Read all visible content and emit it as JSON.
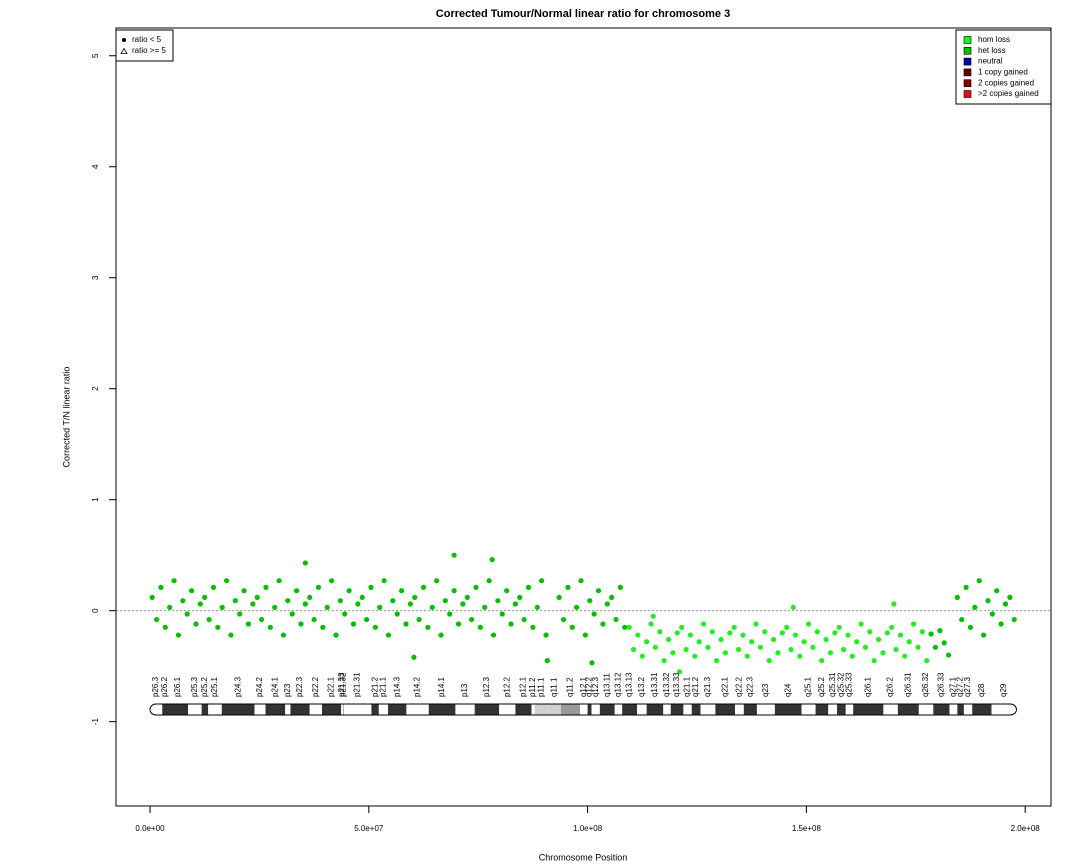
{
  "chart_data": {
    "type": "scatter",
    "title": "Corrected Tumour/Normal linear ratio for chromosome  3",
    "x_label": "Chromosome Position",
    "y_label": "Corrected T/N linear ratio",
    "xlim": [
      -7770000,
      205900000
    ],
    "ylim": [
      -1.76,
      5.25
    ],
    "xticks": [
      {
        "value": 0,
        "label": "0.0e+00"
      },
      {
        "value": 50000000,
        "label": "5.0e+07"
      },
      {
        "value": 100000000,
        "label": "1.0e+08"
      },
      {
        "value": 150000000,
        "label": "1.5e+08"
      },
      {
        "value": 200000000,
        "label": "2.0e+08"
      }
    ],
    "yticks": [
      -1,
      0,
      1,
      2,
      3,
      4,
      5
    ],
    "reference_line": 0,
    "legend": "top-right",
    "shape_legend": [
      "ratio < 5",
      "ratio >= 5"
    ],
    "series": [
      {
        "name": "hom loss",
        "color": "#22ee22",
        "x": [
          109500000.0,
          110500000.0,
          111500000.0,
          112500000.0,
          113500000.0,
          114500000.0,
          115500000.0,
          116500000.0,
          117500000.0,
          118500000.0,
          119500000.0,
          120500000.0,
          121500000.0,
          122500000.0,
          123500000.0,
          124500000.0,
          125500000.0,
          126500000.0,
          127500000.0,
          128500000.0,
          129500000.0,
          130500000.0,
          131500000.0,
          132500000.0,
          133500000.0,
          134500000.0,
          135500000.0,
          136500000.0,
          137500000.0,
          138500000.0,
          139500000.0,
          140500000.0,
          141500000.0,
          142500000.0,
          143500000.0,
          144500000.0,
          145500000.0,
          146500000.0,
          147500000.0,
          148500000.0,
          149500000.0,
          150500000.0,
          151500000.0,
          152500000.0,
          153500000.0,
          154500000.0,
          155500000.0,
          156500000.0,
          157500000.0,
          158500000.0,
          159500000.0,
          160500000.0,
          161500000.0,
          162500000.0,
          163500000.0,
          164500000.0,
          165500000.0,
          166500000.0,
          167500000.0,
          168500000.0,
          169500000.0,
          170500000.0,
          171500000.0,
          172500000.0,
          173500000.0,
          174500000.0,
          175500000.0,
          176500000.0,
          177500000.0,
          121000000.0,
          147000000.0,
          170000000.0,
          115000000.0
        ],
        "values": [
          -0.15,
          -0.35,
          -0.22,
          -0.41,
          -0.28,
          -0.12,
          -0.33,
          -0.19,
          -0.45,
          -0.26,
          -0.38,
          -0.2,
          -0.15,
          -0.35,
          -0.22,
          -0.41,
          -0.28,
          -0.12,
          -0.33,
          -0.19,
          -0.45,
          -0.26,
          -0.38,
          -0.2,
          -0.15,
          -0.35,
          -0.22,
          -0.41,
          -0.28,
          -0.12,
          -0.33,
          -0.19,
          -0.45,
          -0.26,
          -0.38,
          -0.2,
          -0.15,
          -0.35,
          -0.22,
          -0.41,
          -0.28,
          -0.12,
          -0.33,
          -0.19,
          -0.45,
          -0.26,
          -0.38,
          -0.2,
          -0.15,
          -0.35,
          -0.22,
          -0.41,
          -0.28,
          -0.12,
          -0.33,
          -0.19,
          -0.45,
          -0.26,
          -0.38,
          -0.2,
          -0.15,
          -0.35,
          -0.22,
          -0.41,
          -0.28,
          -0.12,
          -0.33,
          -0.19,
          -0.45,
          -0.55,
          0.03,
          0.06,
          -0.05
        ]
      },
      {
        "name": "het loss",
        "color": "#00c000",
        "x": [
          500000.0,
          1500000.0,
          2500000.0,
          3500000.0,
          4500000.0,
          5500000.0,
          6500000.0,
          7500000.0,
          8500000.0,
          9500000.0,
          10500000.0,
          11500000.0,
          12500000.0,
          13500000.0,
          14500000.0,
          15500000.0,
          16500000.0,
          17500000.0,
          18500000.0,
          19500000.0,
          20500000.0,
          21500000.0,
          22500000.0,
          23500000.0,
          24500000.0,
          25500000.0,
          26500000.0,
          27500000.0,
          28500000.0,
          29500000.0,
          30500000.0,
          31500000.0,
          32500000.0,
          33500000.0,
          34500000.0,
          35500000.0,
          36500000.0,
          37500000.0,
          38500000.0,
          39500000.0,
          40500000.0,
          41500000.0,
          42500000.0,
          43500000.0,
          44500000.0,
          45500000.0,
          46500000.0,
          47500000.0,
          48500000.0,
          49500000.0,
          50500000.0,
          51500000.0,
          52500000.0,
          53500000.0,
          54500000.0,
          55500000.0,
          56500000.0,
          57500000.0,
          58500000.0,
          59500000.0,
          60500000.0,
          61500000.0,
          62500000.0,
          63500000.0,
          64500000.0,
          65500000.0,
          66500000.0,
          67500000.0,
          68500000.0,
          69500000.0,
          70500000.0,
          71500000.0,
          72500000.0,
          73500000.0,
          74500000.0,
          75500000.0,
          76500000.0,
          77500000.0,
          78500000.0,
          79500000.0,
          80500000.0,
          81500000.0,
          82500000.0,
          83500000.0,
          84500000.0,
          85500000.0,
          86500000.0,
          87500000.0,
          88500000.0,
          89500000.0,
          90500000.0,
          93500000.0,
          94500000.0,
          95500000.0,
          96500000.0,
          97500000.0,
          98500000.0,
          99500000.0,
          100500000.0,
          101500000.0,
          102500000.0,
          103500000.0,
          104500000.0,
          105500000.0,
          106500000.0,
          107500000.0,
          108500000.0,
          178500000.0,
          179500000.0,
          180500000.0,
          181500000.0,
          182500000.0,
          184500000.0,
          185500000.0,
          186500000.0,
          187500000.0,
          188500000.0,
          189500000.0,
          190500000.0,
          191500000.0,
          192500000.0,
          193500000.0,
          194500000.0,
          195500000.0,
          196500000.0,
          197500000.0,
          69500000.0,
          78200000.0,
          35500000.0,
          60300000.0,
          90800000.0,
          101000000.0
        ],
        "values": [
          0.12,
          -0.08,
          0.21,
          -0.15,
          0.03,
          0.27,
          -0.22,
          0.09,
          -0.03,
          0.18,
          -0.12,
          0.06,
          0.12,
          -0.08,
          0.21,
          -0.15,
          0.03,
          0.27,
          -0.22,
          0.09,
          -0.03,
          0.18,
          -0.12,
          0.06,
          0.12,
          -0.08,
          0.21,
          -0.15,
          0.03,
          0.27,
          -0.22,
          0.09,
          -0.03,
          0.18,
          -0.12,
          0.06,
          0.12,
          -0.08,
          0.21,
          -0.15,
          0.03,
          0.27,
          -0.22,
          0.09,
          -0.03,
          0.18,
          -0.12,
          0.06,
          0.12,
          -0.08,
          0.21,
          -0.15,
          0.03,
          0.27,
          -0.22,
          0.09,
          -0.03,
          0.18,
          -0.12,
          0.06,
          0.12,
          -0.08,
          0.21,
          -0.15,
          0.03,
          0.27,
          -0.22,
          0.09,
          -0.03,
          0.18,
          -0.12,
          0.06,
          0.12,
          -0.08,
          0.21,
          -0.15,
          0.03,
          0.27,
          -0.22,
          0.09,
          -0.03,
          0.18,
          -0.12,
          0.06,
          0.12,
          -0.08,
          0.21,
          -0.15,
          0.03,
          0.27,
          -0.22,
          0.12,
          -0.08,
          0.21,
          -0.15,
          0.03,
          0.27,
          -0.22,
          0.09,
          -0.03,
          0.18,
          -0.12,
          0.06,
          0.12,
          -0.08,
          0.21,
          -0.15,
          -0.21,
          -0.33,
          -0.18,
          -0.29,
          -0.4,
          0.12,
          -0.08,
          0.21,
          -0.15,
          0.03,
          0.27,
          -0.22,
          0.09,
          -0.03,
          0.18,
          -0.12,
          0.06,
          0.12,
          -0.08,
          0.5,
          0.46,
          0.43,
          -0.42,
          -0.45,
          -0.47
        ]
      },
      {
        "name": "neutral",
        "color": "#0000aa",
        "x": [],
        "values": []
      },
      {
        "name": "1 copy gained",
        "color": "#660000",
        "x": [],
        "values": []
      },
      {
        "name": "2 copies gained",
        "color": "#880000",
        "x": [],
        "values": []
      },
      {
        "name": ">2 copies gained",
        "color": "#dd1111",
        "x": [],
        "values": []
      }
    ],
    "stain_colors": {
      "gneg": "#ffffff",
      "gpos": "#333333",
      "acen": "#d0d0d0",
      "gvar": "#999999"
    },
    "cytobands": [
      {
        "name": "p26.3",
        "start": 0,
        "end": 2800000,
        "stain": "gneg"
      },
      {
        "name": "p26.2",
        "start": 2800000,
        "end": 4000000,
        "stain": "gpos"
      },
      {
        "name": "p26.1",
        "start": 4000000,
        "end": 8700000,
        "stain": "gpos"
      },
      {
        "name": "p25.3",
        "start": 8700000,
        "end": 11800000,
        "stain": "gneg"
      },
      {
        "name": "p25.2",
        "start": 11800000,
        "end": 13300000,
        "stain": "gpos"
      },
      {
        "name": "p25.1",
        "start": 13300000,
        "end": 16400000,
        "stain": "gneg"
      },
      {
        "name": "p24.3",
        "start": 16400000,
        "end": 23900000,
        "stain": "gpos"
      },
      {
        "name": "p24.2",
        "start": 23900000,
        "end": 26400000,
        "stain": "gneg"
      },
      {
        "name": "p24.1",
        "start": 26400000,
        "end": 30900000,
        "stain": "gpos"
      },
      {
        "name": "p23",
        "start": 30900000,
        "end": 32100000,
        "stain": "gneg"
      },
      {
        "name": "p22.3",
        "start": 32100000,
        "end": 36500000,
        "stain": "gpos"
      },
      {
        "name": "p22.2",
        "start": 36500000,
        "end": 39300000,
        "stain": "gneg"
      },
      {
        "name": "p22.1",
        "start": 39300000,
        "end": 43700000,
        "stain": "gpos"
      },
      {
        "name": "p21.33",
        "start": 43700000,
        "end": 44100000,
        "stain": "gneg"
      },
      {
        "name": "p21.32",
        "start": 44100000,
        "end": 44200000,
        "stain": "gpos"
      },
      {
        "name": "p21.31",
        "start": 44200000,
        "end": 50600000,
        "stain": "gneg"
      },
      {
        "name": "p21.2",
        "start": 50600000,
        "end": 52300000,
        "stain": "gpos"
      },
      {
        "name": "p21.1",
        "start": 52300000,
        "end": 54400000,
        "stain": "gneg"
      },
      {
        "name": "p14.3",
        "start": 54400000,
        "end": 58600000,
        "stain": "gpos"
      },
      {
        "name": "p14.2",
        "start": 58600000,
        "end": 63700000,
        "stain": "gneg"
      },
      {
        "name": "p14.1",
        "start": 63700000,
        "end": 69800000,
        "stain": "gpos"
      },
      {
        "name": "p13",
        "start": 69800000,
        "end": 74200000,
        "stain": "gneg"
      },
      {
        "name": "p12.3",
        "start": 74200000,
        "end": 79800000,
        "stain": "gpos"
      },
      {
        "name": "p12.2",
        "start": 79800000,
        "end": 83500000,
        "stain": "gneg"
      },
      {
        "name": "p12.1",
        "start": 83500000,
        "end": 87200000,
        "stain": "gpos"
      },
      {
        "name": "p11.2",
        "start": 87200000,
        "end": 87900000,
        "stain": "gneg"
      },
      {
        "name": "p11.1",
        "start": 87900000,
        "end": 91000000,
        "stain": "acen"
      },
      {
        "name": "q11.1",
        "start": 91000000,
        "end": 93900000,
        "stain": "acen"
      },
      {
        "name": "q11.2",
        "start": 93900000,
        "end": 98300000,
        "stain": "gvar"
      },
      {
        "name": "q12.1",
        "start": 98300000,
        "end": 100000000,
        "stain": "gneg"
      },
      {
        "name": "q12.2",
        "start": 100000000,
        "end": 100900000,
        "stain": "gpos"
      },
      {
        "name": "q12.3",
        "start": 100900000,
        "end": 102800000,
        "stain": "gneg"
      },
      {
        "name": "q13.11",
        "start": 102800000,
        "end": 106200000,
        "stain": "gpos"
      },
      {
        "name": "q13.12",
        "start": 106200000,
        "end": 107900000,
        "stain": "gneg"
      },
      {
        "name": "q13.13",
        "start": 107900000,
        "end": 111300000,
        "stain": "gpos"
      },
      {
        "name": "q13.2",
        "start": 111300000,
        "end": 113500000,
        "stain": "gneg"
      },
      {
        "name": "q13.31",
        "start": 113500000,
        "end": 117300000,
        "stain": "gpos"
      },
      {
        "name": "q13.32",
        "start": 117300000,
        "end": 119000000,
        "stain": "gneg"
      },
      {
        "name": "q13.33",
        "start": 119000000,
        "end": 121900000,
        "stain": "gpos"
      },
      {
        "name": "q21.1",
        "start": 121900000,
        "end": 123800000,
        "stain": "gneg"
      },
      {
        "name": "q21.2",
        "start": 123800000,
        "end": 125800000,
        "stain": "gpos"
      },
      {
        "name": "q21.3",
        "start": 125800000,
        "end": 129200000,
        "stain": "gneg"
      },
      {
        "name": "q22.1",
        "start": 129200000,
        "end": 133700000,
        "stain": "gpos"
      },
      {
        "name": "q22.2",
        "start": 133700000,
        "end": 135700000,
        "stain": "gneg"
      },
      {
        "name": "q22.3",
        "start": 135700000,
        "end": 138700000,
        "stain": "gpos"
      },
      {
        "name": "q23",
        "start": 138700000,
        "end": 142800000,
        "stain": "gneg"
      },
      {
        "name": "q24",
        "start": 142800000,
        "end": 148900000,
        "stain": "gpos"
      },
      {
        "name": "q25.1",
        "start": 148900000,
        "end": 152100000,
        "stain": "gneg"
      },
      {
        "name": "q25.2",
        "start": 152100000,
        "end": 155000000,
        "stain": "gpos"
      },
      {
        "name": "q25.31",
        "start": 155000000,
        "end": 157000000,
        "stain": "gneg"
      },
      {
        "name": "q25.32",
        "start": 157000000,
        "end": 159000000,
        "stain": "gpos"
      },
      {
        "name": "q25.33",
        "start": 159000000,
        "end": 160700000,
        "stain": "gneg"
      },
      {
        "name": "q26.1",
        "start": 160700000,
        "end": 167600000,
        "stain": "gpos"
      },
      {
        "name": "q26.2",
        "start": 167600000,
        "end": 170900000,
        "stain": "gneg"
      },
      {
        "name": "q26.31",
        "start": 170900000,
        "end": 175700000,
        "stain": "gpos"
      },
      {
        "name": "q26.32",
        "start": 175700000,
        "end": 179000000,
        "stain": "gneg"
      },
      {
        "name": "q26.33",
        "start": 179000000,
        "end": 182700000,
        "stain": "gpos"
      },
      {
        "name": "q27.1",
        "start": 182700000,
        "end": 184500000,
        "stain": "gneg"
      },
      {
        "name": "q27.2",
        "start": 184500000,
        "end": 186000000,
        "stain": "gpos"
      },
      {
        "name": "q27.3",
        "start": 186000000,
        "end": 187900000,
        "stain": "gneg"
      },
      {
        "name": "q28",
        "start": 187900000,
        "end": 192300000,
        "stain": "gpos"
      },
      {
        "name": "q29",
        "start": 192300000,
        "end": 198000000,
        "stain": "gneg"
      }
    ]
  }
}
